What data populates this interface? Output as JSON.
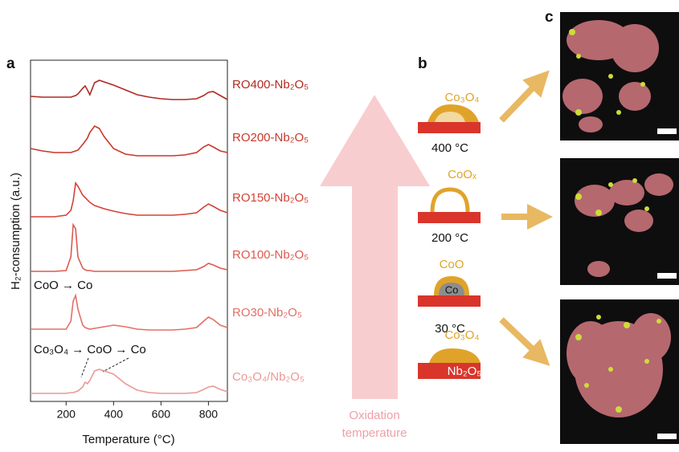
{
  "chart_data": {
    "type": "line",
    "panel_label": "a",
    "xlabel": "Temperature (°C)",
    "ylabel": "H₂-consumption (a.u.)",
    "x": [
      50,
      100,
      150,
      200,
      220,
      230,
      240,
      250,
      270,
      280,
      290,
      300,
      320,
      340,
      360,
      400,
      450,
      500,
      550,
      600,
      650,
      700,
      750,
      780,
      800,
      820,
      850,
      880
    ],
    "xlim": [
      50,
      880
    ],
    "xticks": [
      200,
      400,
      600,
      800
    ],
    "ylim": [
      0,
      425
    ],
    "annotations": [
      "CoO → Co",
      "Co₃O₄ → CoO → Co"
    ],
    "series": [
      {
        "name": "RO400-Nb₂O₅",
        "color": "#b02a22",
        "values": [
          380,
          379,
          379,
          379,
          379,
          380,
          381,
          383,
          390,
          393,
          388,
          382,
          397,
          400,
          398,
          394,
          388,
          382,
          379,
          377,
          376,
          376,
          377,
          381,
          385,
          386,
          381,
          376
        ]
      },
      {
        "name": "RO200-Nb₂O₅",
        "color": "#c8372c",
        "values": [
          315,
          312,
          310,
          310,
          310,
          311,
          312,
          313,
          320,
          324,
          328,
          335,
          343,
          340,
          330,
          315,
          308,
          306,
          306,
          306,
          306,
          307,
          310,
          317,
          320,
          317,
          312,
          310
        ]
      },
      {
        "name": "RO150-Nb₂O₅",
        "color": "#d44236",
        "values": [
          230,
          230,
          230,
          232,
          238,
          250,
          272,
          268,
          257,
          254,
          251,
          248,
          244,
          242,
          240,
          237,
          234,
          232,
          232,
          232,
          232,
          233,
          235,
          242,
          246,
          243,
          238,
          235
        ]
      },
      {
        "name": "RO100-Nb₂O₅",
        "color": "#dc5a50",
        "values": [
          162,
          162,
          162,
          163,
          180,
          220,
          215,
          180,
          166,
          164,
          163,
          163,
          162,
          162,
          162,
          162,
          162,
          162,
          162,
          162,
          162,
          163,
          164,
          168,
          172,
          170,
          166,
          164
        ]
      },
      {
        "name": "RO30-Nb₂O₅",
        "color": "#e27066",
        "values": [
          90,
          90,
          90,
          90,
          100,
          125,
          132,
          115,
          95,
          92,
          91,
          90,
          91,
          92,
          93,
          95,
          93,
          90,
          89,
          89,
          89,
          90,
          92,
          100,
          105,
          102,
          95,
          92
        ]
      },
      {
        "name": "Co₃O₄/Nb₂O₅",
        "color": "#eb9893",
        "values": [
          10,
          10,
          10,
          10,
          11,
          11,
          12,
          13,
          18,
          24,
          22,
          26,
          38,
          40,
          38,
          34,
          22,
          14,
          11,
          10,
          10,
          10,
          11,
          15,
          18,
          19,
          15,
          12
        ]
      }
    ]
  },
  "schematic": {
    "panel_label": "b",
    "arrow_label": [
      "Oxidation",
      "temperature"
    ],
    "states": [
      {
        "shell": "Co₃O₄",
        "temperature": "400 °C"
      },
      {
        "shell": "CoOₓ",
        "temperature": "200 °C"
      },
      {
        "shell": "CoO",
        "core": "Co",
        "temperature": "30 °C"
      },
      {
        "shell": "Co₃O₄",
        "support": "Nb₂O₅"
      }
    ]
  },
  "images": {
    "panel_label": "c"
  }
}
